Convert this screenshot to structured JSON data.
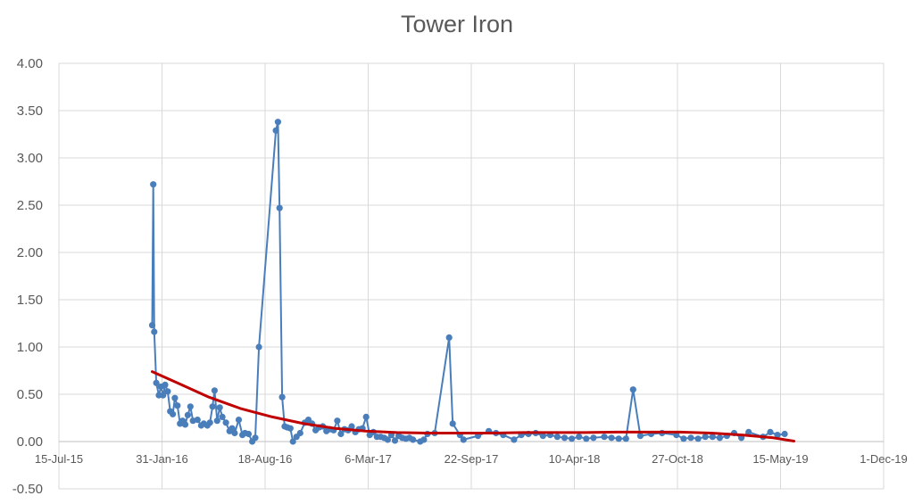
{
  "chart_data": {
    "type": "line",
    "title": "Tower Iron",
    "xlabel": "",
    "ylabel": "",
    "xlim": [
      "2015-07-15",
      "2019-12-01"
    ],
    "ylim": [
      -0.5,
      4.0
    ],
    "x_ticks": [
      "15-Jul-15",
      "31-Jan-16",
      "18-Aug-16",
      "6-Mar-17",
      "22-Sep-17",
      "10-Apr-18",
      "27-Oct-18",
      "15-May-19",
      "1-Dec-19"
    ],
    "y_ticks": [
      "-0.50",
      "0.00",
      "0.50",
      "1.00",
      "1.50",
      "2.00",
      "2.50",
      "3.00",
      "3.50",
      "4.00"
    ],
    "grid": true,
    "colors": {
      "series": "#4a7ebb",
      "trend": "#c00000",
      "grid": "#d9d9d9",
      "text": "#595959"
    },
    "series": [
      {
        "type": "line-markers",
        "points": [
          [
            "2016-01-12",
            1.23
          ],
          [
            "2016-01-14",
            2.72
          ],
          [
            "2016-01-16",
            1.16
          ],
          [
            "2016-01-20",
            0.62
          ],
          [
            "2016-01-25",
            0.49
          ],
          [
            "2016-01-29",
            0.58
          ],
          [
            "2016-02-02",
            0.49
          ],
          [
            "2016-02-06",
            0.6
          ],
          [
            "2016-02-11",
            0.53
          ],
          [
            "2016-02-16",
            0.32
          ],
          [
            "2016-02-21",
            0.29
          ],
          [
            "2016-02-25",
            0.46
          ],
          [
            "2016-03-01",
            0.38
          ],
          [
            "2016-03-06",
            0.19
          ],
          [
            "2016-03-11",
            0.22
          ],
          [
            "2016-03-16",
            0.18
          ],
          [
            "2016-03-21",
            0.28
          ],
          [
            "2016-03-26",
            0.37
          ],
          [
            "2016-03-31",
            0.22
          ],
          [
            "2016-04-09",
            0.23
          ],
          [
            "2016-04-16",
            0.17
          ],
          [
            "2016-04-21",
            0.19
          ],
          [
            "2016-04-28",
            0.17
          ],
          [
            "2016-05-03",
            0.2
          ],
          [
            "2016-05-08",
            0.37
          ],
          [
            "2016-05-12",
            0.54
          ],
          [
            "2016-05-17",
            0.22
          ],
          [
            "2016-05-22",
            0.36
          ],
          [
            "2016-05-27",
            0.26
          ],
          [
            "2016-06-03",
            0.2
          ],
          [
            "2016-06-10",
            0.11
          ],
          [
            "2016-06-15",
            0.14
          ],
          [
            "2016-06-20",
            0.09
          ],
          [
            "2016-06-28",
            0.23
          ],
          [
            "2016-07-05",
            0.07
          ],
          [
            "2016-07-10",
            0.09
          ],
          [
            "2016-07-17",
            0.08
          ],
          [
            "2016-07-24",
            0.0
          ],
          [
            "2016-07-30",
            0.04
          ],
          [
            "2016-08-06",
            1.0
          ],
          [
            "2016-09-08",
            3.29
          ],
          [
            "2016-09-12",
            3.38
          ],
          [
            "2016-09-15",
            2.47
          ],
          [
            "2016-09-20",
            0.47
          ],
          [
            "2016-09-25",
            0.16
          ],
          [
            "2016-09-30",
            0.15
          ],
          [
            "2016-10-06",
            0.14
          ],
          [
            "2016-10-11",
            0.0
          ],
          [
            "2016-10-18",
            0.05
          ],
          [
            "2016-10-25",
            0.09
          ],
          [
            "2016-11-03",
            0.2
          ],
          [
            "2016-11-10",
            0.23
          ],
          [
            "2016-11-17",
            0.19
          ],
          [
            "2016-11-24",
            0.12
          ],
          [
            "2016-12-01",
            0.15
          ],
          [
            "2016-12-08",
            0.16
          ],
          [
            "2016-12-15",
            0.11
          ],
          [
            "2016-12-22",
            0.13
          ],
          [
            "2016-12-29",
            0.12
          ],
          [
            "2017-01-05",
            0.22
          ],
          [
            "2017-01-12",
            0.08
          ],
          [
            "2017-01-19",
            0.13
          ],
          [
            "2017-01-26",
            0.12
          ],
          [
            "2017-02-02",
            0.16
          ],
          [
            "2017-02-09",
            0.1
          ],
          [
            "2017-02-16",
            0.13
          ],
          [
            "2017-02-23",
            0.14
          ],
          [
            "2017-03-02",
            0.26
          ],
          [
            "2017-03-09",
            0.07
          ],
          [
            "2017-03-16",
            0.1
          ],
          [
            "2017-03-23",
            0.05
          ],
          [
            "2017-03-30",
            0.05
          ],
          [
            "2017-04-06",
            0.04
          ],
          [
            "2017-04-13",
            0.02
          ],
          [
            "2017-04-20",
            0.07
          ],
          [
            "2017-04-27",
            0.01
          ],
          [
            "2017-05-04",
            0.06
          ],
          [
            "2017-05-11",
            0.04
          ],
          [
            "2017-05-18",
            0.03
          ],
          [
            "2017-05-25",
            0.04
          ],
          [
            "2017-06-01",
            0.02
          ],
          [
            "2017-06-15",
            0.0
          ],
          [
            "2017-06-22",
            0.02
          ],
          [
            "2017-06-29",
            0.08
          ],
          [
            "2017-07-13",
            0.09
          ],
          [
            "2017-08-10",
            1.1
          ],
          [
            "2017-08-17",
            0.19
          ],
          [
            "2017-08-31",
            0.07
          ],
          [
            "2017-09-07",
            0.02
          ],
          [
            "2017-10-05",
            0.06
          ],
          [
            "2017-10-26",
            0.11
          ],
          [
            "2017-11-09",
            0.09
          ],
          [
            "2017-11-23",
            0.07
          ],
          [
            "2017-12-14",
            0.02
          ],
          [
            "2017-12-28",
            0.07
          ],
          [
            "2018-01-11",
            0.08
          ],
          [
            "2018-01-25",
            0.09
          ],
          [
            "2018-02-08",
            0.06
          ],
          [
            "2018-02-22",
            0.07
          ],
          [
            "2018-03-08",
            0.05
          ],
          [
            "2018-03-22",
            0.04
          ],
          [
            "2018-04-05",
            0.03
          ],
          [
            "2018-04-19",
            0.05
          ],
          [
            "2018-05-03",
            0.03
          ],
          [
            "2018-05-17",
            0.04
          ],
          [
            "2018-06-07",
            0.05
          ],
          [
            "2018-06-21",
            0.04
          ],
          [
            "2018-07-05",
            0.03
          ],
          [
            "2018-07-19",
            0.03
          ],
          [
            "2018-08-02",
            0.55
          ],
          [
            "2018-08-16",
            0.06
          ],
          [
            "2018-09-06",
            0.08
          ],
          [
            "2018-09-27",
            0.09
          ],
          [
            "2018-10-25",
            0.07
          ],
          [
            "2018-11-08",
            0.03
          ],
          [
            "2018-11-22",
            0.04
          ],
          [
            "2018-12-06",
            0.03
          ],
          [
            "2018-12-20",
            0.05
          ],
          [
            "2019-01-03",
            0.05
          ],
          [
            "2019-01-17",
            0.04
          ],
          [
            "2019-01-31",
            0.06
          ],
          [
            "2019-02-14",
            0.09
          ],
          [
            "2019-02-28",
            0.04
          ],
          [
            "2019-03-14",
            0.1
          ],
          [
            "2019-04-11",
            0.05
          ],
          [
            "2019-04-25",
            0.1
          ],
          [
            "2019-05-09",
            0.07
          ],
          [
            "2019-05-23",
            0.08
          ]
        ]
      },
      {
        "type": "trendline",
        "points": [
          [
            "2016-01-12",
            0.74
          ],
          [
            "2016-03-01",
            0.62
          ],
          [
            "2016-05-01",
            0.47
          ],
          [
            "2016-07-01",
            0.35
          ],
          [
            "2016-09-01",
            0.26
          ],
          [
            "2016-11-01",
            0.19
          ],
          [
            "2017-01-01",
            0.14
          ],
          [
            "2017-03-01",
            0.11
          ],
          [
            "2017-05-01",
            0.095
          ],
          [
            "2017-07-01",
            0.09
          ],
          [
            "2017-09-01",
            0.09
          ],
          [
            "2017-11-01",
            0.09
          ],
          [
            "2018-01-01",
            0.095
          ],
          [
            "2018-03-01",
            0.095
          ],
          [
            "2018-05-01",
            0.095
          ],
          [
            "2018-07-01",
            0.1
          ],
          [
            "2018-09-01",
            0.1
          ],
          [
            "2018-11-01",
            0.1
          ],
          [
            "2019-01-01",
            0.09
          ],
          [
            "2019-03-01",
            0.07
          ],
          [
            "2019-05-01",
            0.04
          ],
          [
            "2019-06-10",
            0.005
          ]
        ]
      }
    ]
  }
}
